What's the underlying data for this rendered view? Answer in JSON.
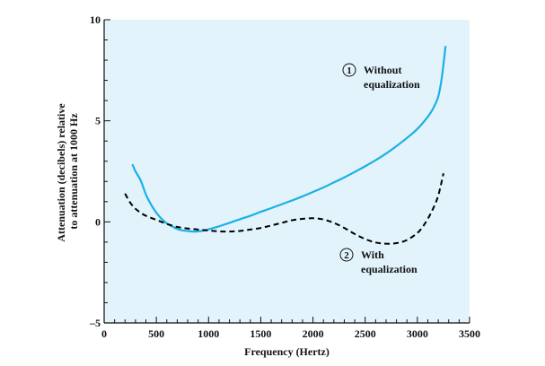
{
  "chart_data": {
    "type": "line",
    "xlabel": "Frequency (Hertz)",
    "ylabel": [
      "Attenuation (decibels) relative",
      "to attenuation at 1000 Hz"
    ],
    "xlim": [
      0,
      3500
    ],
    "ylim": [
      -5,
      10
    ],
    "xticks": [
      0,
      500,
      1000,
      1500,
      2000,
      2500,
      3000,
      3500
    ],
    "yticks_labeled": [
      -5,
      0,
      5,
      10
    ],
    "ytick_labels": [
      "–5",
      "0",
      "5",
      "10"
    ],
    "y_minor_step": 1,
    "x_minor_step": 100,
    "plot_background": "#e2f3fb",
    "grid": false,
    "series": [
      {
        "style": "solid",
        "color": "#1ab1e6",
        "x": [
          270,
          300,
          350,
          400,
          450,
          500,
          550,
          600,
          650,
          700,
          750,
          800,
          850,
          900,
          950,
          1000,
          1100,
          1200,
          1300,
          1400,
          1500,
          1600,
          1700,
          1800,
          1900,
          2000,
          2100,
          2200,
          2300,
          2400,
          2500,
          2600,
          2700,
          2800,
          2900,
          3000,
          3100,
          3150,
          3200,
          3230,
          3250,
          3270
        ],
        "y": [
          2.85,
          2.5,
          2.05,
          1.35,
          0.85,
          0.45,
          0.15,
          -0.08,
          -0.22,
          -0.35,
          -0.42,
          -0.45,
          -0.48,
          -0.47,
          -0.43,
          -0.37,
          -0.22,
          -0.05,
          0.13,
          0.3,
          0.5,
          0.68,
          0.87,
          1.06,
          1.26,
          1.48,
          1.7,
          1.95,
          2.2,
          2.47,
          2.75,
          3.05,
          3.38,
          3.75,
          4.15,
          4.6,
          5.2,
          5.6,
          6.2,
          7.0,
          7.8,
          8.7
        ]
      },
      {
        "style": "dashed",
        "color": "#000000",
        "x": [
          200,
          250,
          300,
          350,
          400,
          500,
          600,
          700,
          800,
          900,
          1000,
          1100,
          1200,
          1300,
          1400,
          1500,
          1600,
          1700,
          1800,
          1900,
          2000,
          2100,
          2200,
          2300,
          2400,
          2500,
          2600,
          2700,
          2800,
          2900,
          3000,
          3050,
          3100,
          3150,
          3200,
          3250
        ],
        "y": [
          1.4,
          0.95,
          0.65,
          0.45,
          0.3,
          0.1,
          -0.1,
          -0.25,
          -0.33,
          -0.38,
          -0.43,
          -0.47,
          -0.48,
          -0.45,
          -0.38,
          -0.3,
          -0.18,
          -0.05,
          0.08,
          0.15,
          0.18,
          0.12,
          -0.05,
          -0.3,
          -0.6,
          -0.85,
          -1.02,
          -1.08,
          -1.05,
          -0.9,
          -0.55,
          -0.25,
          0.15,
          0.65,
          1.3,
          2.4
        ]
      }
    ],
    "annotations": [
      {
        "marker": "1",
        "line1": "Without",
        "line2": "equalization"
      },
      {
        "marker": "2",
        "line1": "With",
        "line2": "equalization"
      }
    ]
  }
}
